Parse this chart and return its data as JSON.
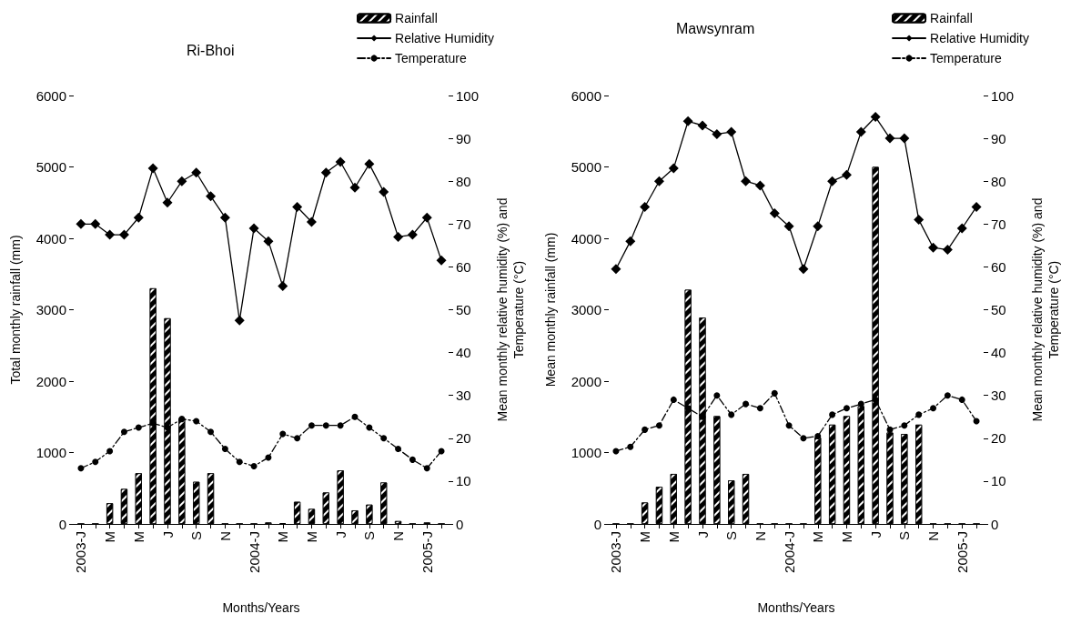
{
  "chart_data": [
    {
      "type": "bar",
      "title": "Ri-Bhoi",
      "xlabel": "Months/Years",
      "ylabel": "Total monthly rainfall (mm)",
      "y2label": "Mean monthly relative humidity (%) and\nTemperature (°C)",
      "categories": [
        "2003-J",
        null,
        "M",
        null,
        "M",
        null,
        "J",
        null,
        "S",
        null,
        "N",
        null,
        "2004-J",
        null,
        "M",
        null,
        "M",
        null,
        "J",
        null,
        "S",
        null,
        "N",
        null,
        "2005-J",
        null
      ],
      "series": [
        {
          "name": "Rainfall",
          "color": "#000000",
          "values": [
            0,
            0,
            290,
            490,
            710,
            3300,
            2880,
            1480,
            590,
            710,
            0,
            0,
            0,
            20,
            10,
            310,
            210,
            440,
            750,
            190,
            270,
            580,
            40,
            0,
            20,
            0
          ]
        },
        {
          "name": "Relative Humidity",
          "type": "line",
          "axis": "y2",
          "color": "#000000",
          "marker": "diamond",
          "line_style": "solid",
          "values": [
            70,
            70,
            67.5,
            67.5,
            71.5,
            83,
            75,
            80,
            82,
            76.5,
            71.5,
            47.5,
            69,
            66,
            55.5,
            74,
            70.5,
            82,
            84.5,
            78.5,
            84,
            77.5,
            67,
            67.5,
            71.5,
            61.5
          ]
        },
        {
          "name": "Temperature",
          "type": "line",
          "axis": "y2",
          "color": "#000000",
          "marker": "circle",
          "line_style": "dashed",
          "values": [
            13,
            14.5,
            17,
            21.5,
            22.5,
            23.5,
            22.5,
            24.5,
            24,
            21.5,
            17.5,
            14.5,
            13.5,
            15.5,
            21,
            20,
            23,
            23,
            23,
            25,
            22.5,
            20,
            17.5,
            15,
            13,
            17
          ]
        }
      ],
      "ylim": [
        0,
        6000
      ],
      "yticks": [
        0,
        1000,
        2000,
        3000,
        4000,
        5000,
        6000
      ],
      "y2lim": [
        0,
        100
      ],
      "y2ticks": [
        0,
        10,
        20,
        30,
        40,
        50,
        60,
        70,
        80,
        90,
        100
      ],
      "legend": "top right"
    },
    {
      "type": "bar",
      "title": "Mawsynram",
      "xlabel": "Months/Years",
      "ylabel": "Mean monthly rainfall (mm)",
      "y2label": "Mean monthly relative humidity (%) and\nTemperature (°C)",
      "categories": [
        "2003-J",
        null,
        "M",
        null,
        "M",
        null,
        "J",
        null,
        "S",
        null,
        "N",
        null,
        "2004-J",
        null,
        "M",
        null,
        "M",
        null,
        "J",
        null,
        "S",
        null,
        "N",
        null,
        "2005-J",
        null
      ],
      "series": [
        {
          "name": "Rainfall",
          "color": "#000000",
          "values": [
            0,
            0,
            300,
            520,
            700,
            3280,
            2890,
            1510,
            610,
            700,
            0,
            0,
            0,
            0,
            1210,
            1390,
            1510,
            1650,
            5000,
            1280,
            1260,
            1390,
            0,
            0,
            0,
            0
          ]
        },
        {
          "name": "Relative Humidity",
          "type": "line",
          "axis": "y2",
          "color": "#000000",
          "marker": "diamond",
          "line_style": "solid",
          "values": [
            59.5,
            66,
            74,
            80,
            83,
            94,
            93,
            91,
            91.5,
            80,
            79,
            72.5,
            69.5,
            59.5,
            69.5,
            80,
            81.5,
            91.5,
            95,
            90,
            90,
            71,
            64.5,
            64,
            69,
            74
          ]
        },
        {
          "name": "Temperature",
          "type": "line",
          "axis": "y2",
          "color": "#000000",
          "marker": "circle",
          "line_style": "dashed",
          "values": [
            17,
            18,
            22,
            23,
            29,
            27,
            25,
            30,
            25.5,
            28,
            27,
            30.5,
            23,
            20,
            20.5,
            25.5,
            27,
            28,
            29,
            22,
            23,
            25.5,
            27,
            30,
            29,
            24
          ]
        }
      ],
      "ylim": [
        0,
        6000
      ],
      "yticks": [
        0,
        1000,
        2000,
        3000,
        4000,
        5000,
        6000
      ],
      "y2lim": [
        0,
        100
      ],
      "y2ticks": [
        0,
        10,
        20,
        30,
        40,
        50,
        60,
        70,
        80,
        90,
        100
      ],
      "legend": "top right"
    }
  ]
}
